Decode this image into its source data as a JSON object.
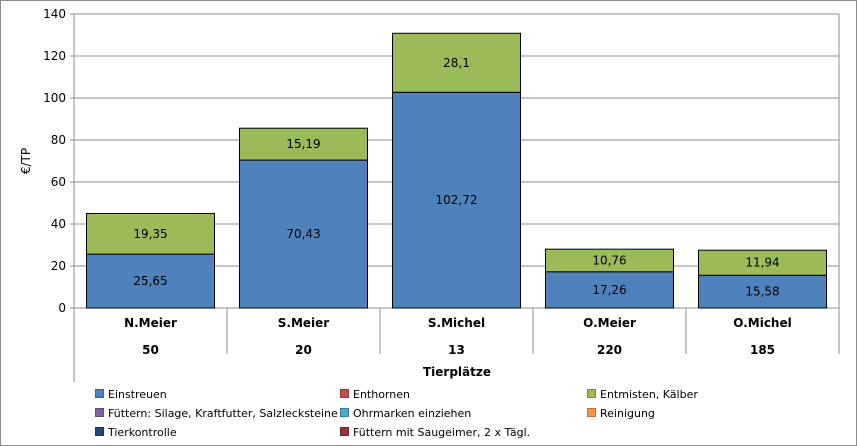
{
  "chart_data": {
    "type": "bar",
    "stacked": true,
    "categories": [
      "N.Meier",
      "S.Meier",
      "S.Michel",
      "O.Meier",
      "O.Michel"
    ],
    "tierplaetze": [
      "50",
      "20",
      "13",
      "220",
      "185"
    ],
    "xlabel": "Tierplätze",
    "ylabel": "€/TP",
    "ylim": [
      0,
      140
    ],
    "yticks": [
      0,
      20,
      40,
      60,
      80,
      100,
      120,
      140
    ],
    "grid": true,
    "legend_position": "bottom",
    "series": [
      {
        "name": "Einstreuen",
        "color": "#4f81bd",
        "values": [
          25.65,
          70.43,
          102.72,
          17.26,
          15.58
        ],
        "labels": [
          "25,65",
          "70,43",
          "102,72",
          "17,26",
          "15,58"
        ]
      },
      {
        "name": "Entmisten, Kälber",
        "color": "#9bbb59",
        "values": [
          19.35,
          15.19,
          28.1,
          10.76,
          11.94
        ],
        "labels": [
          "19,35",
          "15,19",
          "28,1",
          "10,76",
          "11,94"
        ]
      },
      {
        "name": "Enthornen",
        "color": "#c0504d",
        "values": [
          0,
          0,
          0,
          0,
          0
        ]
      },
      {
        "name": "Füttern: Silage, Kraftfutter, Salzlecksteine",
        "color": "#8064a2",
        "values": [
          0,
          0,
          0,
          0,
          0
        ]
      },
      {
        "name": "Ohrmarken einziehen",
        "color": "#4bacc6",
        "values": [
          0,
          0,
          0,
          0,
          0
        ]
      },
      {
        "name": "Reinigung",
        "color": "#f79646",
        "values": [
          0,
          0,
          0,
          0,
          0
        ]
      },
      {
        "name": "Tierkontrolle",
        "color": "#1f497d",
        "values": [
          0,
          0,
          0,
          0,
          0
        ]
      },
      {
        "name": "Füttern mit Saugeimer, 2 x Tägl.",
        "color": "#943634",
        "values": [
          0,
          0,
          0,
          0,
          0
        ]
      }
    ]
  },
  "legend": [
    {
      "label": "Einstreuen",
      "color": "#4f81bd"
    },
    {
      "label": "Enthornen",
      "color": "#c0504d"
    },
    {
      "label": "Entmisten, Kälber",
      "color": "#9bbb59"
    },
    {
      "label": "Füttern: Silage, Kraftfutter, Salzlecksteine",
      "color": "#8064a2"
    },
    {
      "label": "Ohrmarken einziehen",
      "color": "#4bacc6"
    },
    {
      "label": "Reinigung",
      "color": "#f79646"
    },
    {
      "label": "Tierkontrolle",
      "color": "#1f497d"
    },
    {
      "label": "Füttern mit Saugeimer, 2 x Tägl.",
      "color": "#943634"
    }
  ]
}
